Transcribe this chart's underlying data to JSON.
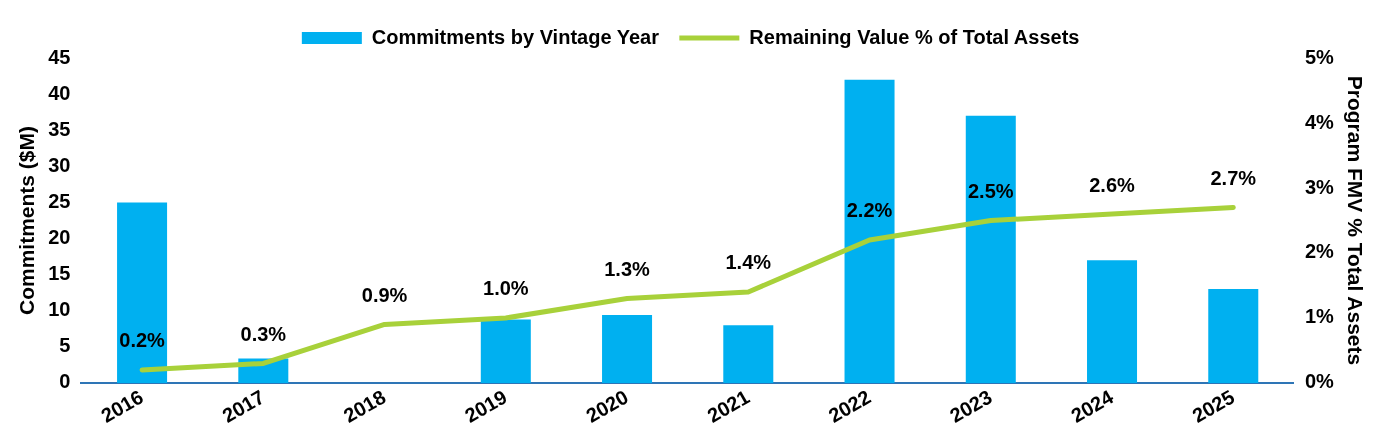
{
  "chart_data": {
    "type": "bar",
    "categories": [
      "2016",
      "2017",
      "2018",
      "2019",
      "2020",
      "2021",
      "2022",
      "2023",
      "2024",
      "2025"
    ],
    "ylabel": "Commitments ($M)",
    "y2label": "Program FMV % Total Assets",
    "ylim": [
      0,
      45
    ],
    "yticks": [
      0,
      5,
      10,
      15,
      20,
      25,
      30,
      35,
      40,
      45
    ],
    "y2lim": [
      0,
      5
    ],
    "y2ticks": [
      {
        "value": 0,
        "label": "0%"
      },
      {
        "value": 1,
        "label": "1%"
      },
      {
        "value": 2,
        "label": "2%"
      },
      {
        "value": 3,
        "label": "3%"
      },
      {
        "value": 4,
        "label": "4%"
      },
      {
        "value": 5,
        "label": "5%"
      }
    ],
    "grid": false,
    "legend": "top",
    "series": [
      {
        "name": "Commitments by Vintage Year",
        "color": "#00b0f0",
        "values": [
          25,
          3.4,
          0,
          8.8,
          9.4,
          8,
          42,
          37,
          17,
          13
        ]
      },
      {
        "type": "line",
        "axis": "y2",
        "name": "Remaining Value % of Total Assets",
        "color": "#a8d13a",
        "marker": "none",
        "values": [
          0.2,
          0.3,
          0.9,
          1.0,
          1.3,
          1.4,
          2.2,
          2.5,
          2.6,
          2.7
        ],
        "value_labels": [
          "0.2%",
          "0.3%",
          "0.9%",
          "1.0%",
          "1.3%",
          "1.4%",
          "2.2%",
          "2.5%",
          "2.6%",
          "2.7%"
        ]
      }
    ]
  }
}
